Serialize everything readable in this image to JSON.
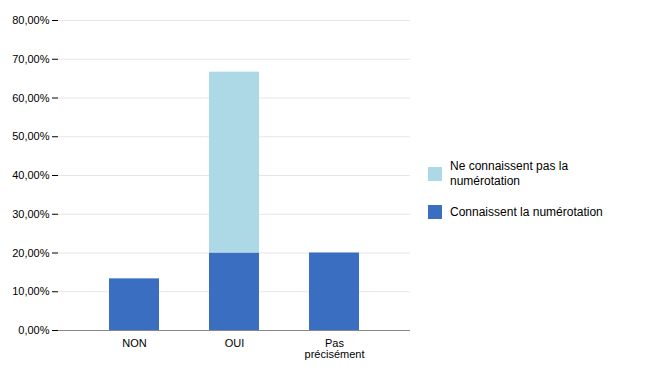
{
  "chart_data": {
    "type": "bar",
    "stacked": true,
    "categories": [
      "NON",
      "OUI",
      "Pas\nprécisément"
    ],
    "series": [
      {
        "name": "Connaissent la numérotation",
        "color": "#3a6ec0",
        "values": [
          0.1333,
          0.2,
          0.2
        ]
      },
      {
        "name": "Ne connaissent pas la\nnumérotation",
        "color": "#add8e6",
        "values": [
          0.0,
          0.4667,
          0.0
        ]
      }
    ],
    "ylim": [
      0.0,
      0.8
    ],
    "yticks": [
      {
        "value": 0.0,
        "label": "0,00%"
      },
      {
        "value": 0.1,
        "label": "10,00%"
      },
      {
        "value": 0.2,
        "label": "20,00%"
      },
      {
        "value": 0.3,
        "label": "30,00%"
      },
      {
        "value": 0.4,
        "label": "40,00%"
      },
      {
        "value": 0.5,
        "label": "50,00%"
      },
      {
        "value": 0.6,
        "label": "60,00%"
      },
      {
        "value": 0.7,
        "label": "70,00%"
      },
      {
        "value": 0.8,
        "label": "80,00%"
      }
    ],
    "grid": true,
    "legend": "right"
  }
}
